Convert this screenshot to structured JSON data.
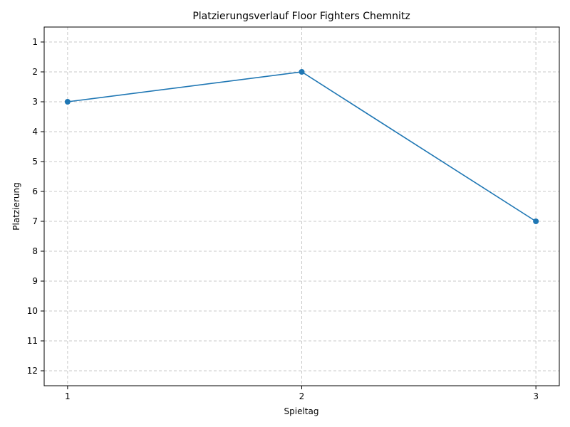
{
  "chart_data": {
    "type": "line",
    "title": "Platzierungsverlauf Floor Fighters Chemnitz",
    "xlabel": "Spieltag",
    "ylabel": "Platzierung",
    "x": [
      1,
      2,
      3
    ],
    "series": [
      {
        "values": [
          3,
          2,
          7
        ]
      }
    ],
    "xlim": [
      0.9,
      3.1
    ],
    "ylim": [
      12.5,
      0.5
    ],
    "y_inverted": true,
    "xticks": [
      1,
      2,
      3
    ],
    "yticks": [
      1,
      2,
      3,
      4,
      5,
      6,
      7,
      8,
      9,
      10,
      11,
      12
    ],
    "grid": true,
    "line_color": "#1f77b4",
    "grid_color": "#c8c8c8"
  }
}
